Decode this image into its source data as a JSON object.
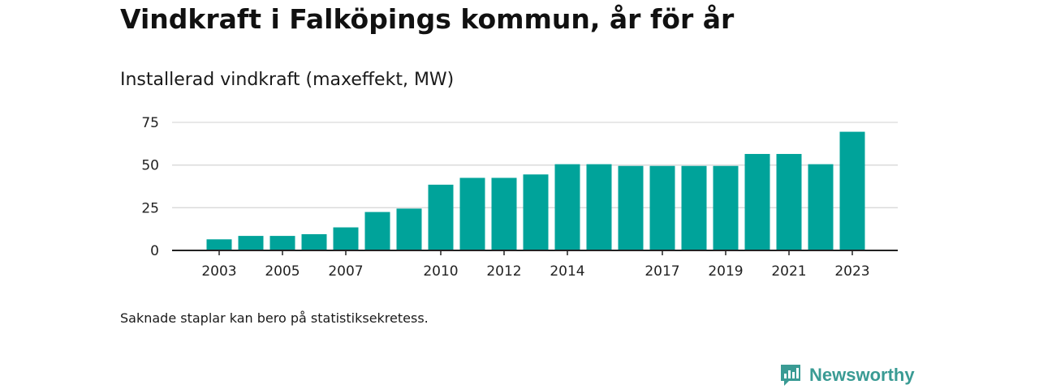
{
  "title": "Vindkraft i Falköpings kommun, år för år",
  "subtitle": "Installerad vindkraft (maxeffekt, MW)",
  "note": "Saknade staplar kan bero på statistiksekretess.",
  "brand": {
    "name": "Newsworthy",
    "icon": "newsworthy-logo-icon",
    "color": "#3a9b94"
  },
  "colors": {
    "bar": "#00a39a",
    "grid": "#d9d9d9",
    "axis": "#222222"
  },
  "chart_data": {
    "type": "bar",
    "title": "Installerad vindkraft (maxeffekt, MW)",
    "xlabel": "",
    "ylabel": "",
    "ylim": [
      0,
      75
    ],
    "y_ticks": [
      0,
      25,
      50,
      75
    ],
    "grid": true,
    "categories": [
      "2003",
      "2004",
      "2005",
      "2006",
      "2007",
      "2008",
      "2009",
      "2010",
      "2011",
      "2012",
      "2013",
      "2014",
      "2015",
      "2016",
      "2017",
      "2018",
      "2019",
      "2020",
      "2021",
      "2022",
      "2023"
    ],
    "values": [
      6.5,
      8.5,
      8.5,
      9.5,
      13.5,
      22.5,
      24.5,
      38.5,
      42.5,
      42.5,
      44.5,
      50.5,
      50.5,
      49.5,
      49.5,
      49.5,
      49.5,
      56.5,
      56.5,
      50.5,
      69.5
    ],
    "x_tick_labels": [
      "2003",
      "2005",
      "2007",
      "2010",
      "2012",
      "2014",
      "2017",
      "2019",
      "2021",
      "2023"
    ]
  }
}
